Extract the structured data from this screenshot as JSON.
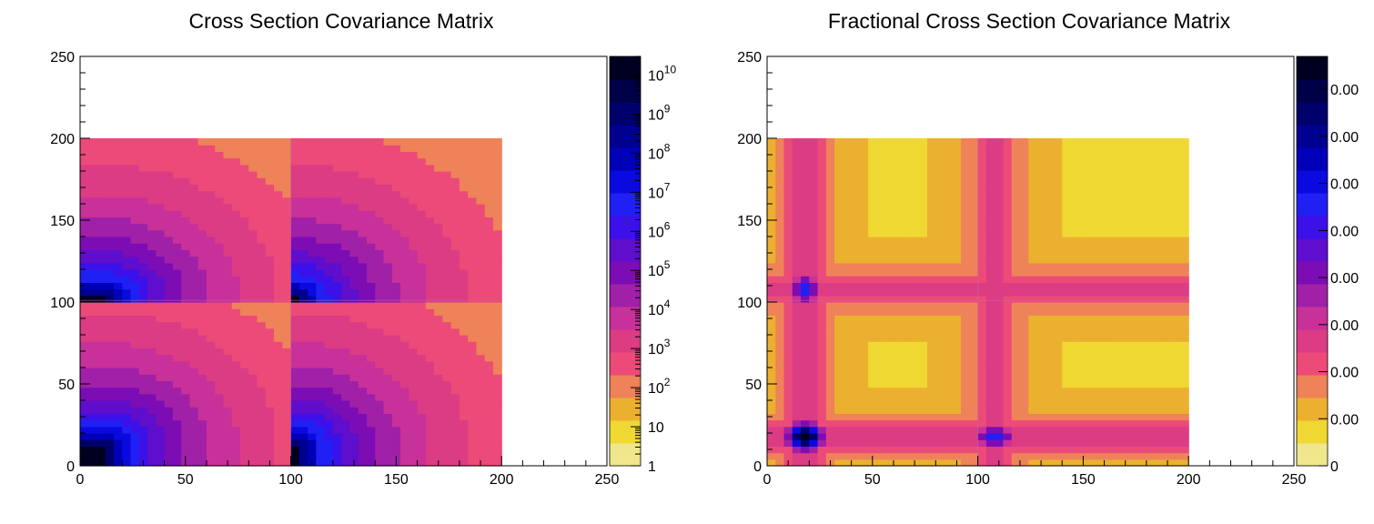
{
  "chart_data": [
    {
      "type": "heatmap",
      "title": "Cross Section Covariance Matrix",
      "xlabel": "",
      "ylabel": "",
      "xlim": [
        0,
        250
      ],
      "ylim": [
        0,
        250
      ],
      "filled_range": {
        "x": [
          0,
          200
        ],
        "y": [
          0,
          200
        ]
      },
      "x_ticks": [
        "0",
        "50",
        "100",
        "150",
        "200",
        "250"
      ],
      "y_ticks": [
        "0",
        "50",
        "100",
        "150",
        "200",
        "250"
      ],
      "colorbar": {
        "scale": "log",
        "range": [
          1,
          30000000000
        ],
        "labels": [
          {
            "base": "1",
            "exp": ""
          },
          {
            "base": "10",
            "exp": ""
          },
          {
            "base": "10",
            "exp": "2"
          },
          {
            "base": "10",
            "exp": "3"
          },
          {
            "base": "10",
            "exp": "4"
          },
          {
            "base": "10",
            "exp": "5"
          },
          {
            "base": "10",
            "exp": "6"
          },
          {
            "base": "10",
            "exp": "7"
          },
          {
            "base": "10",
            "exp": "8"
          },
          {
            "base": "10",
            "exp": "9"
          },
          {
            "base": "10",
            "exp": "10"
          }
        ]
      },
      "description_of_structure": "block structure split at bin 100 in x and y; values largest near (15,15), decaying toward (200,200)"
    },
    {
      "type": "heatmap",
      "title": "Fractional Cross Section Covariance Matrix",
      "xlabel": "",
      "ylabel": "",
      "xlim": [
        0,
        250
      ],
      "ylim": [
        0,
        250
      ],
      "filled_range": {
        "x": [
          0,
          200
        ],
        "y": [
          0,
          200
        ]
      },
      "x_ticks": [
        "0",
        "50",
        "100",
        "150",
        "200",
        "250"
      ],
      "y_ticks": [
        "0",
        "50",
        "100",
        "150",
        "200",
        "250"
      ],
      "colorbar": {
        "scale": "linear",
        "labels": [
          "0",
          "0.00",
          "0.00",
          "0.00",
          "0.00",
          "0.00",
          "0.00",
          "0.00",
          "0.00"
        ]
      },
      "description_of_structure": "largest fractional values near (18,18), secondary peaks near (18,108) and (108,18); mostly low elsewhere"
    }
  ],
  "palette": [
    "#f0e68c",
    "#f0d832",
    "#ecb030",
    "#ee8258",
    "#ec4a78",
    "#dc3c84",
    "#c8309a",
    "#a020a8",
    "#7c0cb4",
    "#5e0ecc",
    "#3c10e8",
    "#2020f4",
    "#0a0ae0",
    "#0000b8",
    "#000090",
    "#00006c",
    "#000048",
    "#000020"
  ]
}
